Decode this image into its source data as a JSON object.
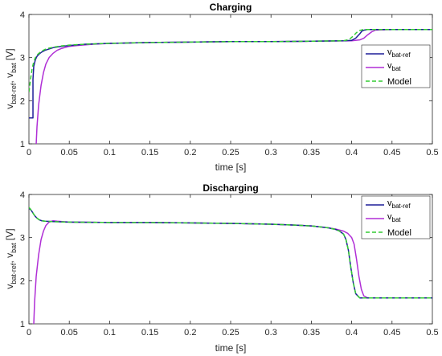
{
  "chart_data": [
    {
      "type": "line",
      "title": "Charging",
      "xlabel": "time [s]",
      "ylabel": {
        "a": "v",
        "a_sub": "bat-ref",
        "sep": ", ",
        "b": "v",
        "b_sub": "bat",
        "unit": " [V]"
      },
      "xlim": [
        0,
        0.5
      ],
      "ylim": [
        1,
        4
      ],
      "xticks": [
        "0",
        "0.05",
        "0.1",
        "0.15",
        "0.2",
        "0.25",
        "0.3",
        "0.35",
        "0.4",
        "0.45",
        "0.5"
      ],
      "yticks": [
        "1",
        "2",
        "3",
        "4"
      ],
      "legend_position": "right",
      "legend": [
        {
          "main": "v",
          "sub": "bat-ref",
          "color": "#1f1f99",
          "dash": false
        },
        {
          "main": "v",
          "sub": "bat",
          "color": "#b02fd6",
          "dash": false
        },
        {
          "main": "Model",
          "sub": "",
          "color": "#33cc33",
          "dash": true
        }
      ],
      "series": [
        {
          "key": "ref",
          "color": "#1f1f99",
          "dash": false,
          "x": [
            0.0,
            0.005,
            0.005,
            0.006,
            0.008,
            0.01,
            0.013,
            0.016,
            0.02,
            0.025,
            0.03,
            0.04,
            0.05,
            0.07,
            0.1,
            0.15,
            0.2,
            0.25,
            0.3,
            0.35,
            0.39,
            0.4,
            0.405,
            0.41,
            0.413,
            0.416,
            0.42,
            0.45,
            0.5
          ],
          "y": [
            1.6,
            1.6,
            2.5,
            2.8,
            2.95,
            3.03,
            3.09,
            3.13,
            3.17,
            3.2,
            3.23,
            3.26,
            3.28,
            3.31,
            3.33,
            3.35,
            3.36,
            3.37,
            3.37,
            3.38,
            3.39,
            3.4,
            3.45,
            3.55,
            3.62,
            3.64,
            3.65,
            3.65,
            3.65
          ]
        },
        {
          "key": "bat",
          "color": "#b02fd6",
          "dash": false,
          "x": [
            0.009,
            0.01,
            0.012,
            0.015,
            0.018,
            0.021,
            0.025,
            0.03,
            0.035,
            0.04,
            0.05,
            0.06,
            0.08,
            0.1,
            0.15,
            0.2,
            0.25,
            0.3,
            0.35,
            0.4,
            0.41,
            0.415,
            0.42,
            0.425,
            0.43,
            0.45,
            0.5
          ],
          "y": [
            1.0,
            1.4,
            1.9,
            2.35,
            2.65,
            2.85,
            3.0,
            3.1,
            3.17,
            3.21,
            3.26,
            3.28,
            3.31,
            3.33,
            3.35,
            3.36,
            3.37,
            3.37,
            3.38,
            3.39,
            3.41,
            3.45,
            3.53,
            3.6,
            3.64,
            3.65,
            3.65
          ]
        },
        {
          "key": "model",
          "color": "#33cc33",
          "dash": true,
          "x": [
            0.0,
            0.002,
            0.004,
            0.006,
            0.008,
            0.01,
            0.013,
            0.016,
            0.02,
            0.025,
            0.03,
            0.04,
            0.05,
            0.07,
            0.1,
            0.15,
            0.2,
            0.25,
            0.3,
            0.35,
            0.39,
            0.397,
            0.402,
            0.406,
            0.41,
            0.415,
            0.45,
            0.5
          ],
          "y": [
            2.2,
            2.5,
            2.75,
            2.9,
            3.0,
            3.06,
            3.11,
            3.15,
            3.19,
            3.22,
            3.24,
            3.27,
            3.29,
            3.31,
            3.33,
            3.35,
            3.36,
            3.37,
            3.37,
            3.38,
            3.39,
            3.42,
            3.5,
            3.58,
            3.63,
            3.65,
            3.65,
            3.65
          ]
        }
      ]
    },
    {
      "type": "line",
      "title": "Discharging",
      "xlabel": "time [s]",
      "ylabel": {
        "a": "v",
        "a_sub": "bat-ref",
        "sep": ", ",
        "b": "v",
        "b_sub": "bat",
        "unit": " [V]"
      },
      "xlim": [
        0,
        0.5
      ],
      "ylim": [
        1,
        4
      ],
      "xticks": [
        "0",
        "0.05",
        "0.1",
        "0.15",
        "0.2",
        "0.25",
        "0.3",
        "0.35",
        "0.4",
        "0.45",
        "0.5"
      ],
      "yticks": [
        "1",
        "2",
        "3",
        "4"
      ],
      "legend_position": "top-right",
      "legend": [
        {
          "main": "v",
          "sub": "bat-ref",
          "color": "#1f1f99",
          "dash": false
        },
        {
          "main": "v",
          "sub": "bat",
          "color": "#b02fd6",
          "dash": false
        },
        {
          "main": "Model",
          "sub": "",
          "color": "#33cc33",
          "dash": true
        }
      ],
      "series": [
        {
          "key": "ref",
          "color": "#1f1f99",
          "dash": false,
          "x": [
            0.0,
            0.002,
            0.004,
            0.006,
            0.008,
            0.01,
            0.013,
            0.016,
            0.02,
            0.03,
            0.05,
            0.1,
            0.15,
            0.2,
            0.25,
            0.3,
            0.33,
            0.35,
            0.37,
            0.38,
            0.385,
            0.39,
            0.393,
            0.396,
            0.399,
            0.402,
            0.405,
            0.41,
            0.45,
            0.5
          ],
          "y": [
            3.68,
            3.65,
            3.6,
            3.54,
            3.49,
            3.45,
            3.41,
            3.39,
            3.38,
            3.37,
            3.36,
            3.35,
            3.35,
            3.34,
            3.33,
            3.31,
            3.29,
            3.27,
            3.23,
            3.19,
            3.15,
            3.08,
            2.95,
            2.7,
            2.3,
            1.95,
            1.7,
            1.6,
            1.6,
            1.6
          ]
        },
        {
          "key": "bat",
          "color": "#b02fd6",
          "dash": false,
          "x": [
            0.006,
            0.007,
            0.009,
            0.012,
            0.015,
            0.018,
            0.021,
            0.025,
            0.03,
            0.035,
            0.05,
            0.1,
            0.15,
            0.2,
            0.25,
            0.3,
            0.33,
            0.35,
            0.37,
            0.38,
            0.39,
            0.395,
            0.4,
            0.403,
            0.406,
            0.409,
            0.412,
            0.415,
            0.42,
            0.45,
            0.5
          ],
          "y": [
            1.0,
            1.5,
            2.1,
            2.6,
            2.95,
            3.15,
            3.28,
            3.36,
            3.39,
            3.38,
            3.36,
            3.35,
            3.35,
            3.34,
            3.33,
            3.31,
            3.29,
            3.27,
            3.23,
            3.2,
            3.15,
            3.1,
            3.0,
            2.85,
            2.5,
            2.1,
            1.8,
            1.65,
            1.6,
            1.6,
            1.6
          ]
        },
        {
          "key": "model",
          "color": "#33cc33",
          "dash": true,
          "x": [
            0.0,
            0.002,
            0.004,
            0.006,
            0.008,
            0.01,
            0.013,
            0.016,
            0.02,
            0.03,
            0.05,
            0.1,
            0.15,
            0.2,
            0.25,
            0.3,
            0.33,
            0.35,
            0.37,
            0.38,
            0.385,
            0.39,
            0.393,
            0.396,
            0.399,
            0.402,
            0.405,
            0.41,
            0.45,
            0.5
          ],
          "y": [
            3.7,
            3.66,
            3.6,
            3.54,
            3.49,
            3.45,
            3.41,
            3.39,
            3.38,
            3.37,
            3.36,
            3.35,
            3.35,
            3.34,
            3.33,
            3.31,
            3.29,
            3.27,
            3.23,
            3.19,
            3.15,
            3.08,
            2.95,
            2.7,
            2.3,
            1.95,
            1.7,
            1.6,
            1.6,
            1.6
          ]
        }
      ]
    }
  ]
}
